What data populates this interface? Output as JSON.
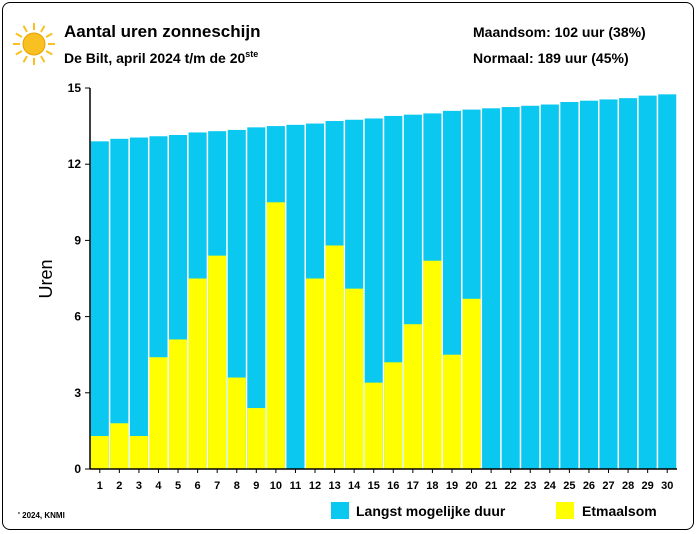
{
  "header": {
    "title": "Aantal uren zonneschijn",
    "subtitle": "De Bilt, april 2024 t/m de 20",
    "subtitle_sup": "ste",
    "maandsom": "Maandsom: 102 uur (38%)",
    "normaal": "Normaal: 189 uur (45%)",
    "sun_icon": "sun-icon"
  },
  "footer": {
    "copyright": "' 2024, KNMI"
  },
  "colors": {
    "max": "#0ac8f0",
    "actual": "#ffff00",
    "sun": "#f8c020"
  },
  "chart_data": {
    "type": "bar",
    "title": "Aantal uren zonneschijn",
    "ylabel": "Uren",
    "xlabel": "",
    "ylim": [
      0,
      15
    ],
    "yticks": [
      0,
      3,
      6,
      9,
      12,
      15
    ],
    "categories": [
      "1",
      "2",
      "3",
      "4",
      "5",
      "6",
      "7",
      "8",
      "9",
      "10",
      "11",
      "12",
      "13",
      "14",
      "15",
      "16",
      "17",
      "18",
      "19",
      "20",
      "21",
      "22",
      "23",
      "24",
      "25",
      "26",
      "27",
      "28",
      "29",
      "30"
    ],
    "series": [
      {
        "name": "Langst mogelijke duur",
        "values": [
          12.9,
          13.0,
          13.05,
          13.1,
          13.15,
          13.25,
          13.3,
          13.35,
          13.45,
          13.5,
          13.55,
          13.6,
          13.7,
          13.75,
          13.8,
          13.9,
          13.95,
          14.0,
          14.1,
          14.15,
          14.2,
          14.25,
          14.3,
          14.35,
          14.45,
          14.5,
          14.55,
          14.6,
          14.7,
          14.75
        ]
      },
      {
        "name": "Etmaalsom",
        "values": [
          1.3,
          1.8,
          1.3,
          4.4,
          5.1,
          7.5,
          8.4,
          3.6,
          2.4,
          10.5,
          0.0,
          7.5,
          8.8,
          7.1,
          3.4,
          4.2,
          5.7,
          8.2,
          4.5,
          6.7,
          null,
          null,
          null,
          null,
          null,
          null,
          null,
          null,
          null,
          null
        ]
      }
    ],
    "legend": "bottom-right",
    "grid": false
  }
}
